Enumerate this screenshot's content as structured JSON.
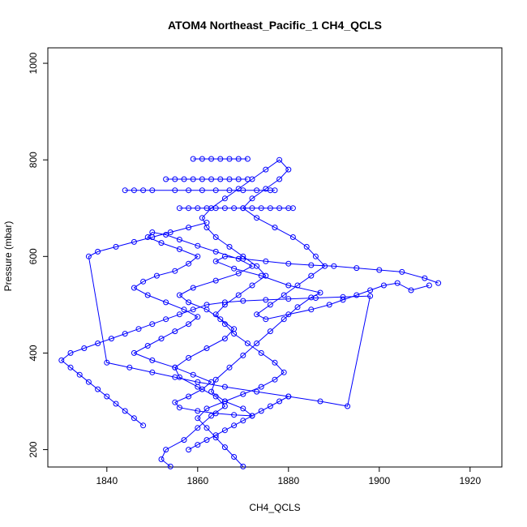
{
  "chart_data": {
    "type": "scatter",
    "title": "ATOM4 Northeast_Pacific_1 CH4_QCLS",
    "xlabel": "CH4_QCLS",
    "ylabel": "Pressure (mbar)",
    "xlim": [
      1827,
      1927
    ],
    "ylim": [
      1032,
      164
    ],
    "y_reversed": true,
    "x_ticks": [
      1840,
      1860,
      1880,
      1900,
      1920
    ],
    "y_ticks": [
      200,
      400,
      600,
      800,
      1000
    ],
    "grid": false,
    "legend": "none",
    "series_color": "#0000ff",
    "marker": "open-circle",
    "line_connected": true,
    "series": [
      {
        "x": [
          1854,
          1852,
          1853,
          1857,
          1860,
          1863,
          1866,
          1864,
          1860,
          1856,
          1855,
          1858,
          1862,
          1866,
          1868,
          1865,
          1862,
          1858,
          1856,
          1859,
          1864,
          1869,
          1872,
          1869,
          1864,
          1860,
          1856,
          1853,
          1850,
          1849,
          1852,
          1856,
          1860,
          1858,
          1855,
          1851,
          1848,
          1846,
          1849,
          1853,
          1857,
          1860,
          1858,
          1855,
          1852,
          1849,
          1846,
          1850,
          1855,
          1859,
          1863,
          1861,
          1858,
          1855,
          1856,
          1860,
          1864,
          1868,
          1872,
          1870,
          1866,
          1863,
          1864,
          1867,
          1870,
          1873,
          1876,
          1879,
          1882,
          1885,
          1887,
          1880,
          1874,
          1868,
          1864,
          1866,
          1870,
          1875,
          1880,
          1885,
          1890,
          1895,
          1900,
          1905,
          1910,
          1913
        ],
        "y": [
          165,
          180,
          200,
          220,
          245,
          270,
          290,
          310,
          330,
          350,
          370,
          390,
          410,
          430,
          450,
          470,
          490,
          505,
          520,
          535,
          550,
          565,
          580,
          595,
          610,
          622,
          635,
          645,
          650,
          640,
          628,
          615,
          600,
          585,
          570,
          560,
          548,
          535,
          520,
          505,
          490,
          475,
          460,
          445,
          430,
          415,
          400,
          385,
          370,
          355,
          340,
          325,
          310,
          298,
          287,
          280,
          275,
          272,
          270,
          285,
          300,
          320,
          345,
          370,
          395,
          420,
          445,
          470,
          495,
          515,
          525,
          540,
          560,
          575,
          590,
          600,
          595,
          590,
          585,
          582,
          580,
          576,
          572,
          568,
          555,
          545
        ]
      },
      {
        "x": [
          1870,
          1868,
          1866,
          1864,
          1862,
          1860,
          1862,
          1866,
          1870,
          1874,
          1877,
          1879,
          1877,
          1874,
          1871,
          1868,
          1866,
          1864,
          1866,
          1869,
          1872,
          1875,
          1873,
          1870,
          1867,
          1864,
          1862,
          1861,
          1863,
          1866,
          1869,
          1872,
          1875,
          1878,
          1880,
          1878,
          1875,
          1872,
          1870,
          1873,
          1877,
          1881,
          1884,
          1886,
          1888,
          1885,
          1882,
          1879,
          1876,
          1873,
          1875,
          1880,
          1885,
          1889,
          1892,
          1895,
          1898,
          1901,
          1904,
          1907,
          1911
        ],
        "y": [
          165,
          185,
          205,
          225,
          245,
          265,
          285,
          300,
          315,
          330,
          345,
          360,
          380,
          400,
          420,
          440,
          460,
          480,
          500,
          520,
          540,
          560,
          580,
          600,
          620,
          640,
          660,
          680,
          700,
          720,
          740,
          760,
          780,
          800,
          780,
          760,
          740,
          720,
          700,
          680,
          660,
          640,
          620,
          600,
          580,
          560,
          540,
          520,
          500,
          480,
          470,
          480,
          490,
          500,
          510,
          520,
          530,
          540,
          545,
          530,
          540
        ]
      },
      {
        "x": [
          1848,
          1846,
          1844,
          1842,
          1840,
          1838,
          1836,
          1834,
          1832,
          1830,
          1832,
          1835,
          1838,
          1841,
          1844,
          1847,
          1850,
          1853,
          1856,
          1859,
          1862,
          1866,
          1870,
          1875,
          1880,
          1886,
          1892,
          1898,
          1893,
          1887,
          1880,
          1873,
          1866,
          1860,
          1855,
          1850,
          1845,
          1840,
          1836,
          1838,
          1842,
          1846,
          1850,
          1854,
          1858,
          1862
        ],
        "y": [
          250,
          265,
          280,
          295,
          310,
          325,
          340,
          355,
          370,
          385,
          400,
          410,
          420,
          430,
          440,
          450,
          460,
          470,
          480,
          490,
          500,
          505,
          508,
          510,
          512,
          514,
          516,
          518,
          290,
          300,
          310,
          320,
          330,
          340,
          350,
          360,
          370,
          380,
          600,
          610,
          620,
          630,
          640,
          650,
          660,
          670
        ]
      },
      {
        "x": [
          1858,
          1860,
          1862,
          1864,
          1866,
          1868,
          1870,
          1872,
          1874,
          1876,
          1878,
          1880
        ],
        "y": [
          200,
          210,
          220,
          230,
          240,
          250,
          260,
          270,
          280,
          290,
          300,
          310
        ]
      },
      {
        "x": [
          1856,
          1858,
          1860,
          1862,
          1864,
          1866,
          1868,
          1870,
          1872,
          1874,
          1876,
          1878,
          1880,
          1881
        ],
        "y": [
          700,
          700,
          700,
          700,
          700,
          700,
          700,
          700,
          700,
          700,
          700,
          700,
          700,
          700
        ]
      },
      {
        "x": [
          1844,
          1846,
          1848,
          1850,
          1855,
          1858,
          1861,
          1864,
          1867,
          1870,
          1873,
          1876,
          1877
        ],
        "y": [
          737,
          737,
          737,
          737,
          737,
          737,
          737,
          737,
          737,
          737,
          737,
          737,
          737
        ]
      },
      {
        "x": [
          1853,
          1855,
          1857,
          1859,
          1861,
          1863,
          1865,
          1867,
          1869,
          1871
        ],
        "y": [
          760,
          760,
          760,
          760,
          760,
          760,
          760,
          760,
          760,
          760
        ]
      },
      {
        "x": [
          1859,
          1861,
          1863,
          1865,
          1867,
          1869,
          1871
        ],
        "y": [
          802,
          802,
          802,
          802,
          802,
          802,
          802
        ]
      }
    ]
  }
}
